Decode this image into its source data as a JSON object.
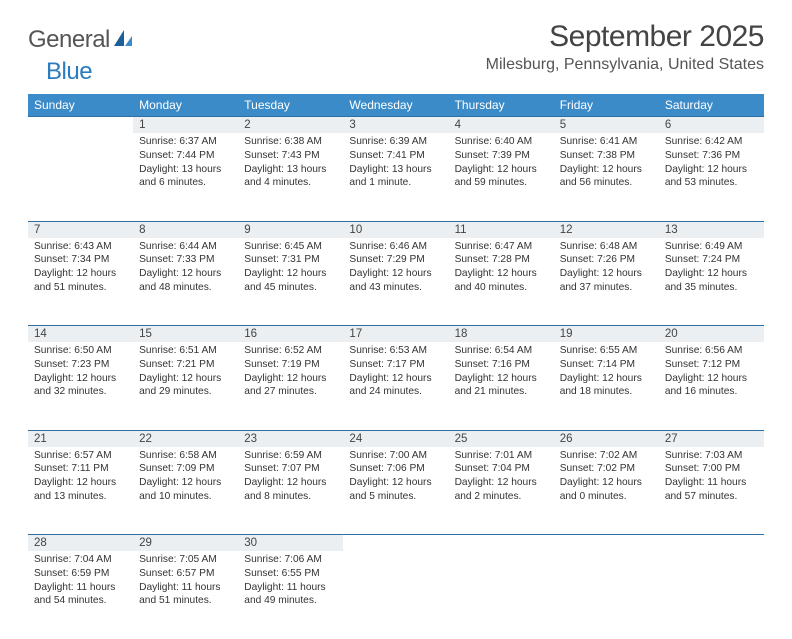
{
  "brand": {
    "part1": "General",
    "part2": "Blue"
  },
  "title": "September 2025",
  "location": "Milesburg, Pennsylvania, United States",
  "colors": {
    "header_bg": "#3b8bc9",
    "header_text": "#ffffff",
    "daynum_bg": "#eceff1",
    "rule": "#2f6fa3",
    "brand_blue": "#2b7bbf",
    "text": "#333333"
  },
  "weekdays": [
    "Sunday",
    "Monday",
    "Tuesday",
    "Wednesday",
    "Thursday",
    "Friday",
    "Saturday"
  ],
  "weeks": [
    {
      "nums": [
        "",
        "1",
        "2",
        "3",
        "4",
        "5",
        "6"
      ],
      "cells": [
        null,
        {
          "sr": "Sunrise: 6:37 AM",
          "ss": "Sunset: 7:44 PM",
          "dl": "Daylight: 13 hours and 6 minutes."
        },
        {
          "sr": "Sunrise: 6:38 AM",
          "ss": "Sunset: 7:43 PM",
          "dl": "Daylight: 13 hours and 4 minutes."
        },
        {
          "sr": "Sunrise: 6:39 AM",
          "ss": "Sunset: 7:41 PM",
          "dl": "Daylight: 13 hours and 1 minute."
        },
        {
          "sr": "Sunrise: 6:40 AM",
          "ss": "Sunset: 7:39 PM",
          "dl": "Daylight: 12 hours and 59 minutes."
        },
        {
          "sr": "Sunrise: 6:41 AM",
          "ss": "Sunset: 7:38 PM",
          "dl": "Daylight: 12 hours and 56 minutes."
        },
        {
          "sr": "Sunrise: 6:42 AM",
          "ss": "Sunset: 7:36 PM",
          "dl": "Daylight: 12 hours and 53 minutes."
        }
      ]
    },
    {
      "nums": [
        "7",
        "8",
        "9",
        "10",
        "11",
        "12",
        "13"
      ],
      "cells": [
        {
          "sr": "Sunrise: 6:43 AM",
          "ss": "Sunset: 7:34 PM",
          "dl": "Daylight: 12 hours and 51 minutes."
        },
        {
          "sr": "Sunrise: 6:44 AM",
          "ss": "Sunset: 7:33 PM",
          "dl": "Daylight: 12 hours and 48 minutes."
        },
        {
          "sr": "Sunrise: 6:45 AM",
          "ss": "Sunset: 7:31 PM",
          "dl": "Daylight: 12 hours and 45 minutes."
        },
        {
          "sr": "Sunrise: 6:46 AM",
          "ss": "Sunset: 7:29 PM",
          "dl": "Daylight: 12 hours and 43 minutes."
        },
        {
          "sr": "Sunrise: 6:47 AM",
          "ss": "Sunset: 7:28 PM",
          "dl": "Daylight: 12 hours and 40 minutes."
        },
        {
          "sr": "Sunrise: 6:48 AM",
          "ss": "Sunset: 7:26 PM",
          "dl": "Daylight: 12 hours and 37 minutes."
        },
        {
          "sr": "Sunrise: 6:49 AM",
          "ss": "Sunset: 7:24 PM",
          "dl": "Daylight: 12 hours and 35 minutes."
        }
      ]
    },
    {
      "nums": [
        "14",
        "15",
        "16",
        "17",
        "18",
        "19",
        "20"
      ],
      "cells": [
        {
          "sr": "Sunrise: 6:50 AM",
          "ss": "Sunset: 7:23 PM",
          "dl": "Daylight: 12 hours and 32 minutes."
        },
        {
          "sr": "Sunrise: 6:51 AM",
          "ss": "Sunset: 7:21 PM",
          "dl": "Daylight: 12 hours and 29 minutes."
        },
        {
          "sr": "Sunrise: 6:52 AM",
          "ss": "Sunset: 7:19 PM",
          "dl": "Daylight: 12 hours and 27 minutes."
        },
        {
          "sr": "Sunrise: 6:53 AM",
          "ss": "Sunset: 7:17 PM",
          "dl": "Daylight: 12 hours and 24 minutes."
        },
        {
          "sr": "Sunrise: 6:54 AM",
          "ss": "Sunset: 7:16 PM",
          "dl": "Daylight: 12 hours and 21 minutes."
        },
        {
          "sr": "Sunrise: 6:55 AM",
          "ss": "Sunset: 7:14 PM",
          "dl": "Daylight: 12 hours and 18 minutes."
        },
        {
          "sr": "Sunrise: 6:56 AM",
          "ss": "Sunset: 7:12 PM",
          "dl": "Daylight: 12 hours and 16 minutes."
        }
      ]
    },
    {
      "nums": [
        "21",
        "22",
        "23",
        "24",
        "25",
        "26",
        "27"
      ],
      "cells": [
        {
          "sr": "Sunrise: 6:57 AM",
          "ss": "Sunset: 7:11 PM",
          "dl": "Daylight: 12 hours and 13 minutes."
        },
        {
          "sr": "Sunrise: 6:58 AM",
          "ss": "Sunset: 7:09 PM",
          "dl": "Daylight: 12 hours and 10 minutes."
        },
        {
          "sr": "Sunrise: 6:59 AM",
          "ss": "Sunset: 7:07 PM",
          "dl": "Daylight: 12 hours and 8 minutes."
        },
        {
          "sr": "Sunrise: 7:00 AM",
          "ss": "Sunset: 7:06 PM",
          "dl": "Daylight: 12 hours and 5 minutes."
        },
        {
          "sr": "Sunrise: 7:01 AM",
          "ss": "Sunset: 7:04 PM",
          "dl": "Daylight: 12 hours and 2 minutes."
        },
        {
          "sr": "Sunrise: 7:02 AM",
          "ss": "Sunset: 7:02 PM",
          "dl": "Daylight: 12 hours and 0 minutes."
        },
        {
          "sr": "Sunrise: 7:03 AM",
          "ss": "Sunset: 7:00 PM",
          "dl": "Daylight: 11 hours and 57 minutes."
        }
      ]
    },
    {
      "nums": [
        "28",
        "29",
        "30",
        "",
        "",
        "",
        ""
      ],
      "cells": [
        {
          "sr": "Sunrise: 7:04 AM",
          "ss": "Sunset: 6:59 PM",
          "dl": "Daylight: 11 hours and 54 minutes."
        },
        {
          "sr": "Sunrise: 7:05 AM",
          "ss": "Sunset: 6:57 PM",
          "dl": "Daylight: 11 hours and 51 minutes."
        },
        {
          "sr": "Sunrise: 7:06 AM",
          "ss": "Sunset: 6:55 PM",
          "dl": "Daylight: 11 hours and 49 minutes."
        },
        null,
        null,
        null,
        null
      ]
    }
  ]
}
